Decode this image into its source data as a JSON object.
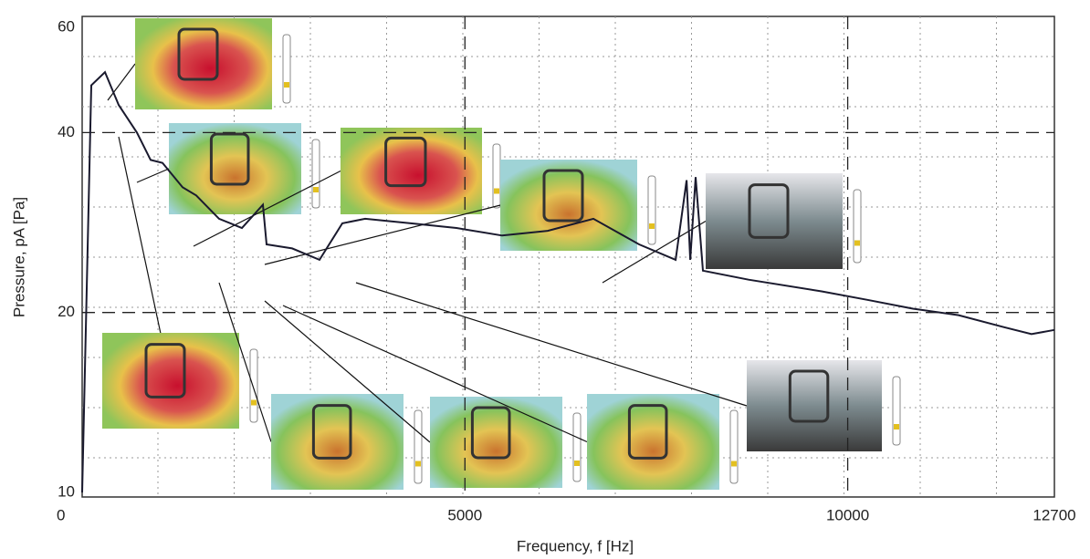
{
  "chart_data": {
    "type": "line",
    "x_label": "Frequency, f [Hz]",
    "y_label": "Pressure, pA [Pa]",
    "log_y": true,
    "xlim": [
      0,
      12700
    ],
    "xticks": [
      0,
      5000,
      10000,
      12700
    ],
    "ylim": [
      10,
      60
    ],
    "yticks": [
      10,
      20,
      40,
      60
    ],
    "grid": true,
    "series": [
      {
        "color": "#1a1a2e",
        "x": [
          0,
          119,
          298,
          477,
          716,
          894,
          1049,
          1312,
          1490,
          1789,
          2087,
          2361,
          2409,
          2743,
          3101,
          3399,
          3697,
          4293,
          4889,
          5486,
          6082,
          6678,
          7275,
          7752,
          7895,
          7943,
          8014,
          8109,
          8705,
          9659,
          10256,
          10852,
          11448,
          12043,
          12401,
          12700
        ],
        "values": [
          10,
          48,
          50.5,
          44.5,
          40,
          36,
          35.6,
          32.4,
          31.4,
          28.7,
          27.7,
          30.3,
          26,
          25.6,
          24.5,
          28.2,
          28.7,
          28.2,
          27.7,
          26.9,
          27.4,
          28.7,
          26,
          24.5,
          33.3,
          24.5,
          33.7,
          23.5,
          22.7,
          21.7,
          21,
          20.3,
          19.8,
          18.9,
          18.4,
          18.7
        ]
      }
    ]
  }
}
